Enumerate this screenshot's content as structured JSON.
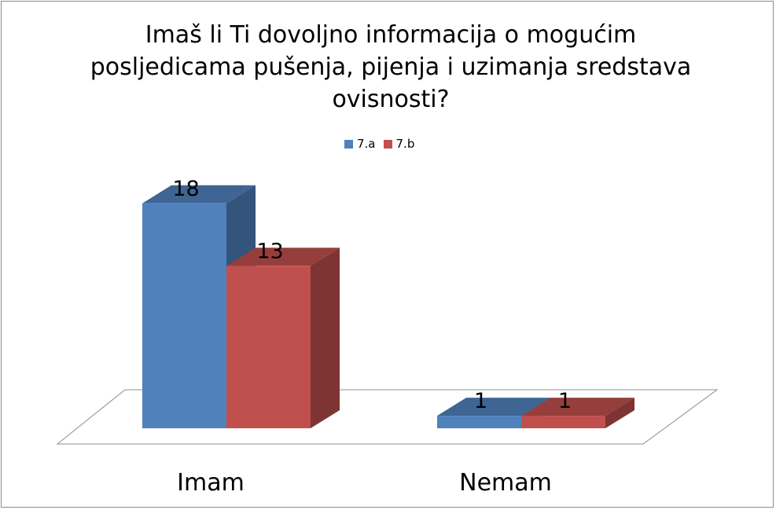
{
  "chart_data": {
    "type": "bar",
    "style": "3d-clustered-column",
    "title": "Imaš li Ti dovoljno informacija o mogućim\nposljedicama pušenja, pijenja i uzimanja sredstava\novisnosti?",
    "categories": [
      "Imam",
      "Nemam"
    ],
    "series": [
      {
        "name": "7.a",
        "values": [
          18,
          1
        ],
        "color": "#4F81BD"
      },
      {
        "name": "7.b",
        "values": [
          13,
          1
        ],
        "color": "#C0504D"
      }
    ],
    "data_labels": true,
    "legend_position": "top",
    "grid": false
  }
}
